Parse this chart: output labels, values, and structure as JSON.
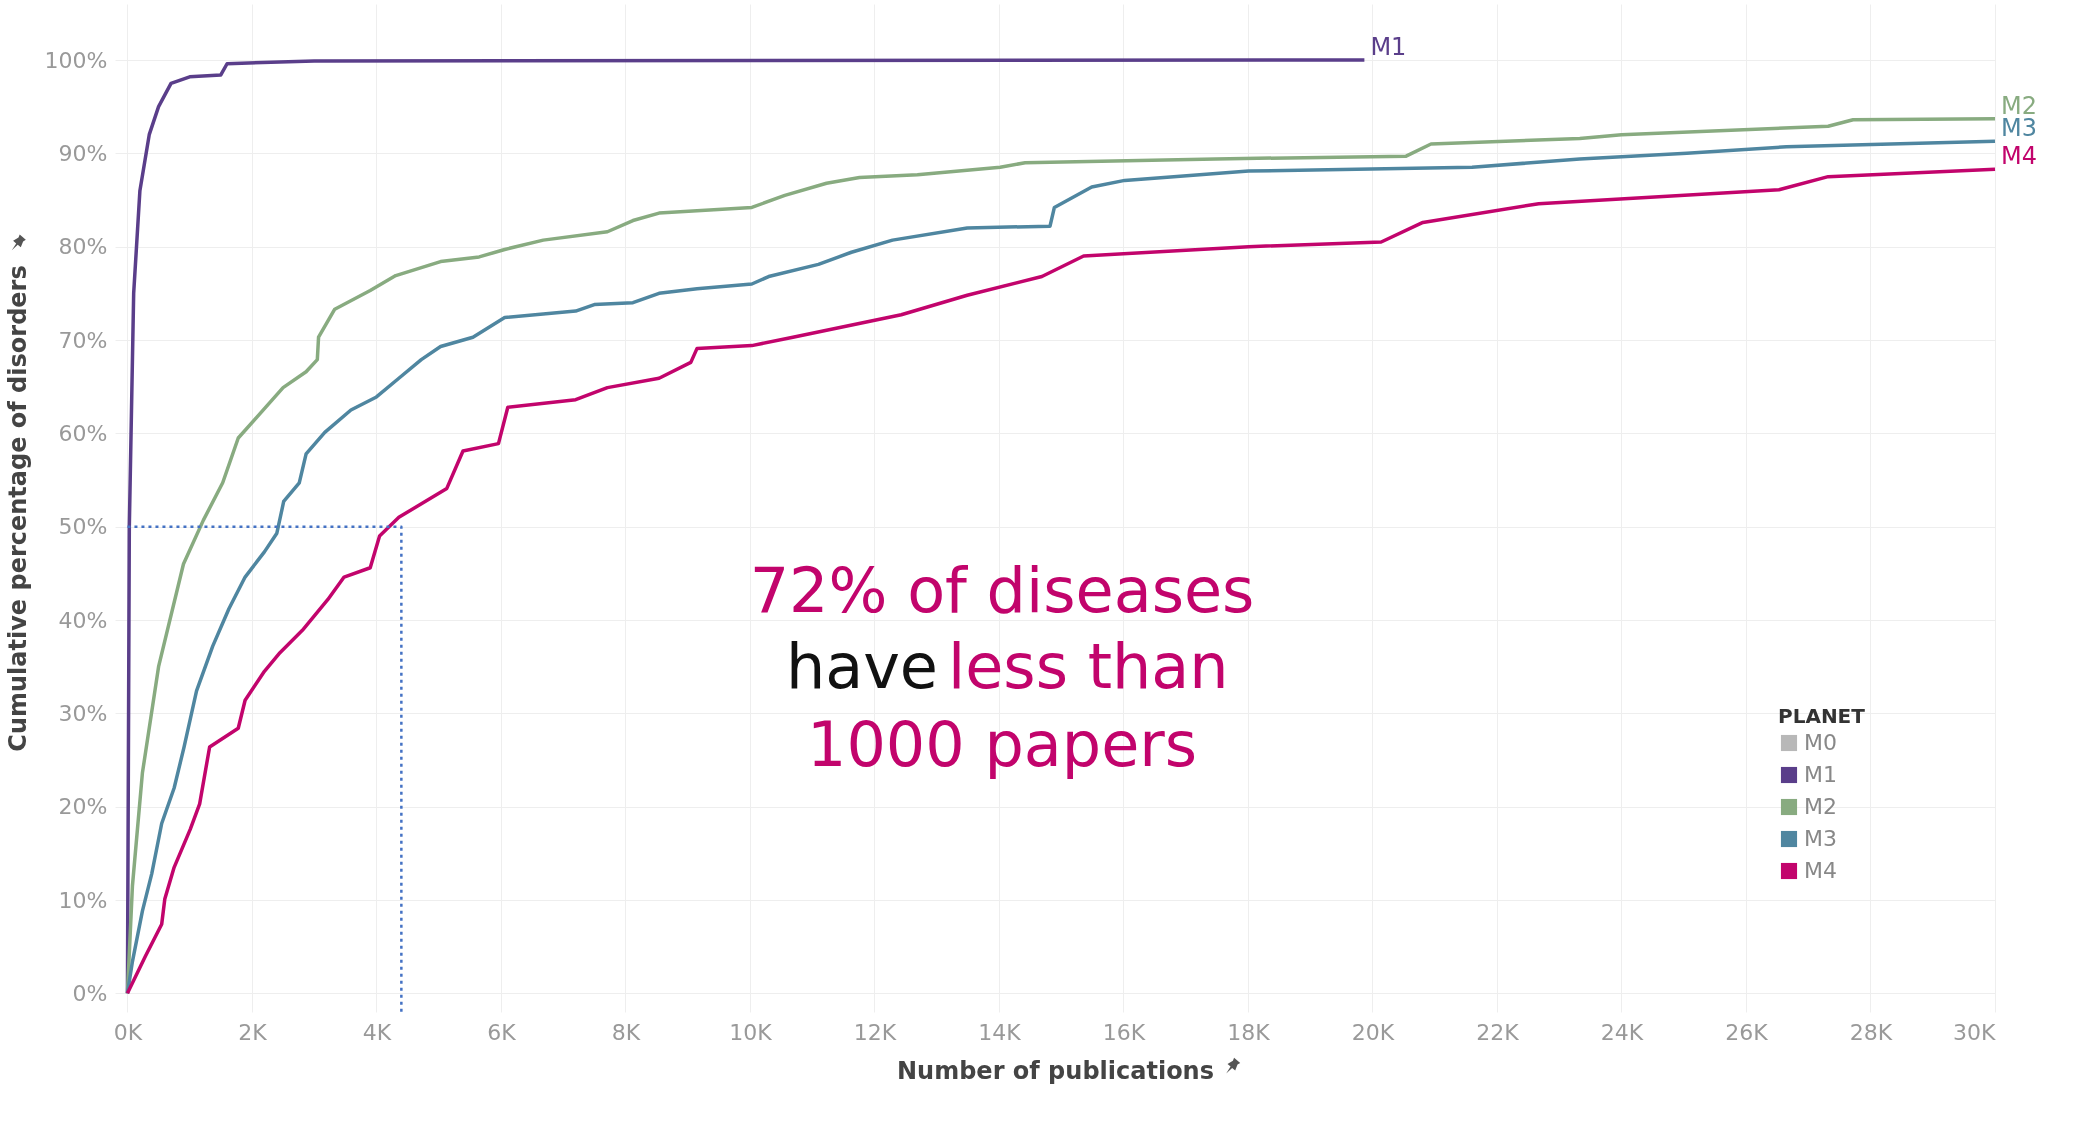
{
  "chart_data": {
    "type": "line",
    "xlabel": "Number of publications",
    "ylabel": "Cumulative percentage of disorders",
    "legend_title": "PLANET",
    "legend": "bottom right",
    "grid": true,
    "marker": "none",
    "xlim": [
      -200,
      30000
    ],
    "ylim": [
      -2,
      106
    ],
    "xticks": [
      {
        "value": 0,
        "label": "0K"
      },
      {
        "value": 2000,
        "label": "2K"
      },
      {
        "value": 4000,
        "label": "4K"
      },
      {
        "value": 6000,
        "label": "6K"
      },
      {
        "value": 8000,
        "label": "8K"
      },
      {
        "value": 10000,
        "label": "10K"
      },
      {
        "value": 12000,
        "label": "12K"
      },
      {
        "value": 14000,
        "label": "14K"
      },
      {
        "value": 16000,
        "label": "16K"
      },
      {
        "value": 18000,
        "label": "18K"
      },
      {
        "value": 20000,
        "label": "20K"
      },
      {
        "value": 22000,
        "label": "22K"
      },
      {
        "value": 24000,
        "label": "24K"
      },
      {
        "value": 26000,
        "label": "26K"
      },
      {
        "value": 28000,
        "label": "28K"
      },
      {
        "value": 30000,
        "label": "30K"
      }
    ],
    "yticks": [
      {
        "value": 0,
        "label": "0%"
      },
      {
        "value": 10,
        "label": "10%"
      },
      {
        "value": 20,
        "label": "20%"
      },
      {
        "value": 30,
        "label": "30%"
      },
      {
        "value": 40,
        "label": "40%"
      },
      {
        "value": 50,
        "label": "50%"
      },
      {
        "value": 60,
        "label": "60%"
      },
      {
        "value": 70,
        "label": "70%"
      },
      {
        "value": 80,
        "label": "80%"
      },
      {
        "value": 90,
        "label": "90%"
      },
      {
        "value": 100,
        "label": "100%"
      }
    ],
    "annotations": [
      "72% of diseases",
      "have",
      "less than",
      "1000 papers"
    ],
    "series": [
      {
        "name": "M0",
        "color": "#b8b8b8"
      },
      {
        "name": "M1",
        "color": "#5a3e8a",
        "x": [
          0,
          30,
          100,
          200,
          350,
          500,
          700,
          1000,
          1500,
          1600,
          3000,
          19870
        ],
        "values": [
          0,
          50,
          75,
          86,
          92,
          95,
          97.5,
          98.2,
          98.4,
          99.6,
          99.9,
          100
        ]
      },
      {
        "name": "M2",
        "color": "#88ab80",
        "x": [
          0,
          80,
          240,
          500,
          900,
          1220,
          1530,
          1780,
          2140,
          2500,
          2870,
          3050,
          3070,
          3330,
          3900,
          4310,
          5030,
          5650,
          6060,
          6680,
          7710,
          8120,
          8540,
          10030,
          10560,
          11230,
          11760,
          12690,
          14020,
          14420,
          17480,
          20540,
          20940,
          23330,
          24000,
          27320,
          27720,
          30000
        ],
        "values": [
          0,
          11.5,
          23.6,
          35,
          46,
          50.7,
          54.7,
          59.5,
          62.2,
          64.9,
          66.6,
          67.9,
          70.3,
          73.3,
          75.3,
          76.9,
          78.4,
          78.9,
          79.7,
          80.7,
          81.6,
          82.8,
          83.6,
          84.2,
          85.5,
          86.8,
          87.4,
          87.7,
          88.5,
          89,
          89.4,
          89.7,
          91,
          91.6,
          92,
          92.9,
          93.6,
          93.7
        ]
      },
      {
        "name": "M3",
        "color": "#4f86a0",
        "x": [
          0,
          80,
          240,
          390,
          550,
          750,
          910,
          1110,
          1370,
          1630,
          1890,
          2200,
          2400,
          2510,
          2760,
          2870,
          3170,
          3590,
          4000,
          4360,
          4720,
          5030,
          5550,
          6060,
          7200,
          7500,
          8120,
          8540,
          9150,
          10030,
          10300,
          11100,
          11630,
          12290,
          13490,
          14820,
          14890,
          15490,
          16020,
          18010,
          21600,
          23330,
          25050,
          26650,
          30000
        ],
        "values": [
          0,
          3.4,
          8.8,
          12.8,
          18.2,
          22,
          26.4,
          32.4,
          37.2,
          41.2,
          44.6,
          47.3,
          49.3,
          52.7,
          54.7,
          57.8,
          60.1,
          62.5,
          63.9,
          65.9,
          67.9,
          69.3,
          70.3,
          72.4,
          73.1,
          73.8,
          74,
          75,
          75.5,
          76,
          76.8,
          78.1,
          79.4,
          80.7,
          82,
          82.2,
          84.2,
          86.4,
          87.1,
          88.1,
          88.5,
          89.4,
          90,
          90.7,
          91.3
        ]
      },
      {
        "name": "M4",
        "color": "#c2046c",
        "x": [
          0,
          290,
          550,
          600,
          750,
          1010,
          1160,
          1320,
          1780,
          1890,
          2200,
          2450,
          2810,
          3220,
          3480,
          3900,
          4050,
          4360,
          5130,
          5390,
          5960,
          6110,
          7200,
          7710,
          8540,
          9050,
          9150,
          10030,
          10690,
          12430,
          13490,
          14690,
          15360,
          18010,
          20140,
          20810,
          22670,
          26530,
          27320,
          30000
        ],
        "values": [
          0,
          4,
          7.4,
          10.1,
          13.5,
          17.6,
          20.3,
          26.4,
          28.4,
          31.4,
          34.5,
          36.5,
          38.9,
          42.2,
          44.6,
          45.6,
          49,
          51,
          54.1,
          58.1,
          58.9,
          62.8,
          63.6,
          64.9,
          65.9,
          67.6,
          69.1,
          69.4,
          70.3,
          72.7,
          74.8,
          76.8,
          79,
          80,
          80.5,
          82.6,
          84.6,
          86.1,
          87.5,
          88.3
        ]
      },
      {
        "type": "line",
        "line_style": "dotted",
        "color": "#4472c4",
        "x": [
          0,
          4400,
          4400
        ],
        "values": [
          50,
          50,
          -2
        ]
      }
    ]
  }
}
